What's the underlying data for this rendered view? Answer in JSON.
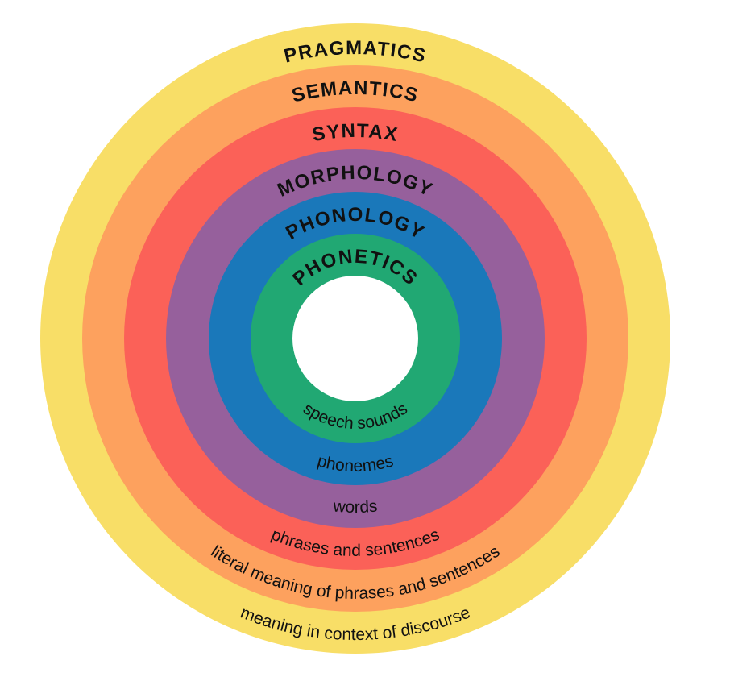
{
  "rings": [
    {
      "id": "pragmatics",
      "title": "PRAGMATICS",
      "description": "meaning in context of discourse",
      "color": "#F8DE67"
    },
    {
      "id": "semantics",
      "title": "SEMANTICS",
      "description": "literal meaning of phrases and sentences",
      "color": "#FDA15E"
    },
    {
      "id": "syntax",
      "title": "SYNTAX",
      "description": "phrases and sentences",
      "color": "#FB6158"
    },
    {
      "id": "morphology",
      "title": "MORPHOLOGY",
      "description": "words",
      "color": "#96609C"
    },
    {
      "id": "phonology",
      "title": "PHONOLOGY",
      "description": "phonemes",
      "color": "#1A78BA"
    },
    {
      "id": "phonetics",
      "title": "PHONETICS",
      "description": "speech sounds",
      "color": "#21A873"
    }
  ],
  "center_color": "#FFFFFF"
}
